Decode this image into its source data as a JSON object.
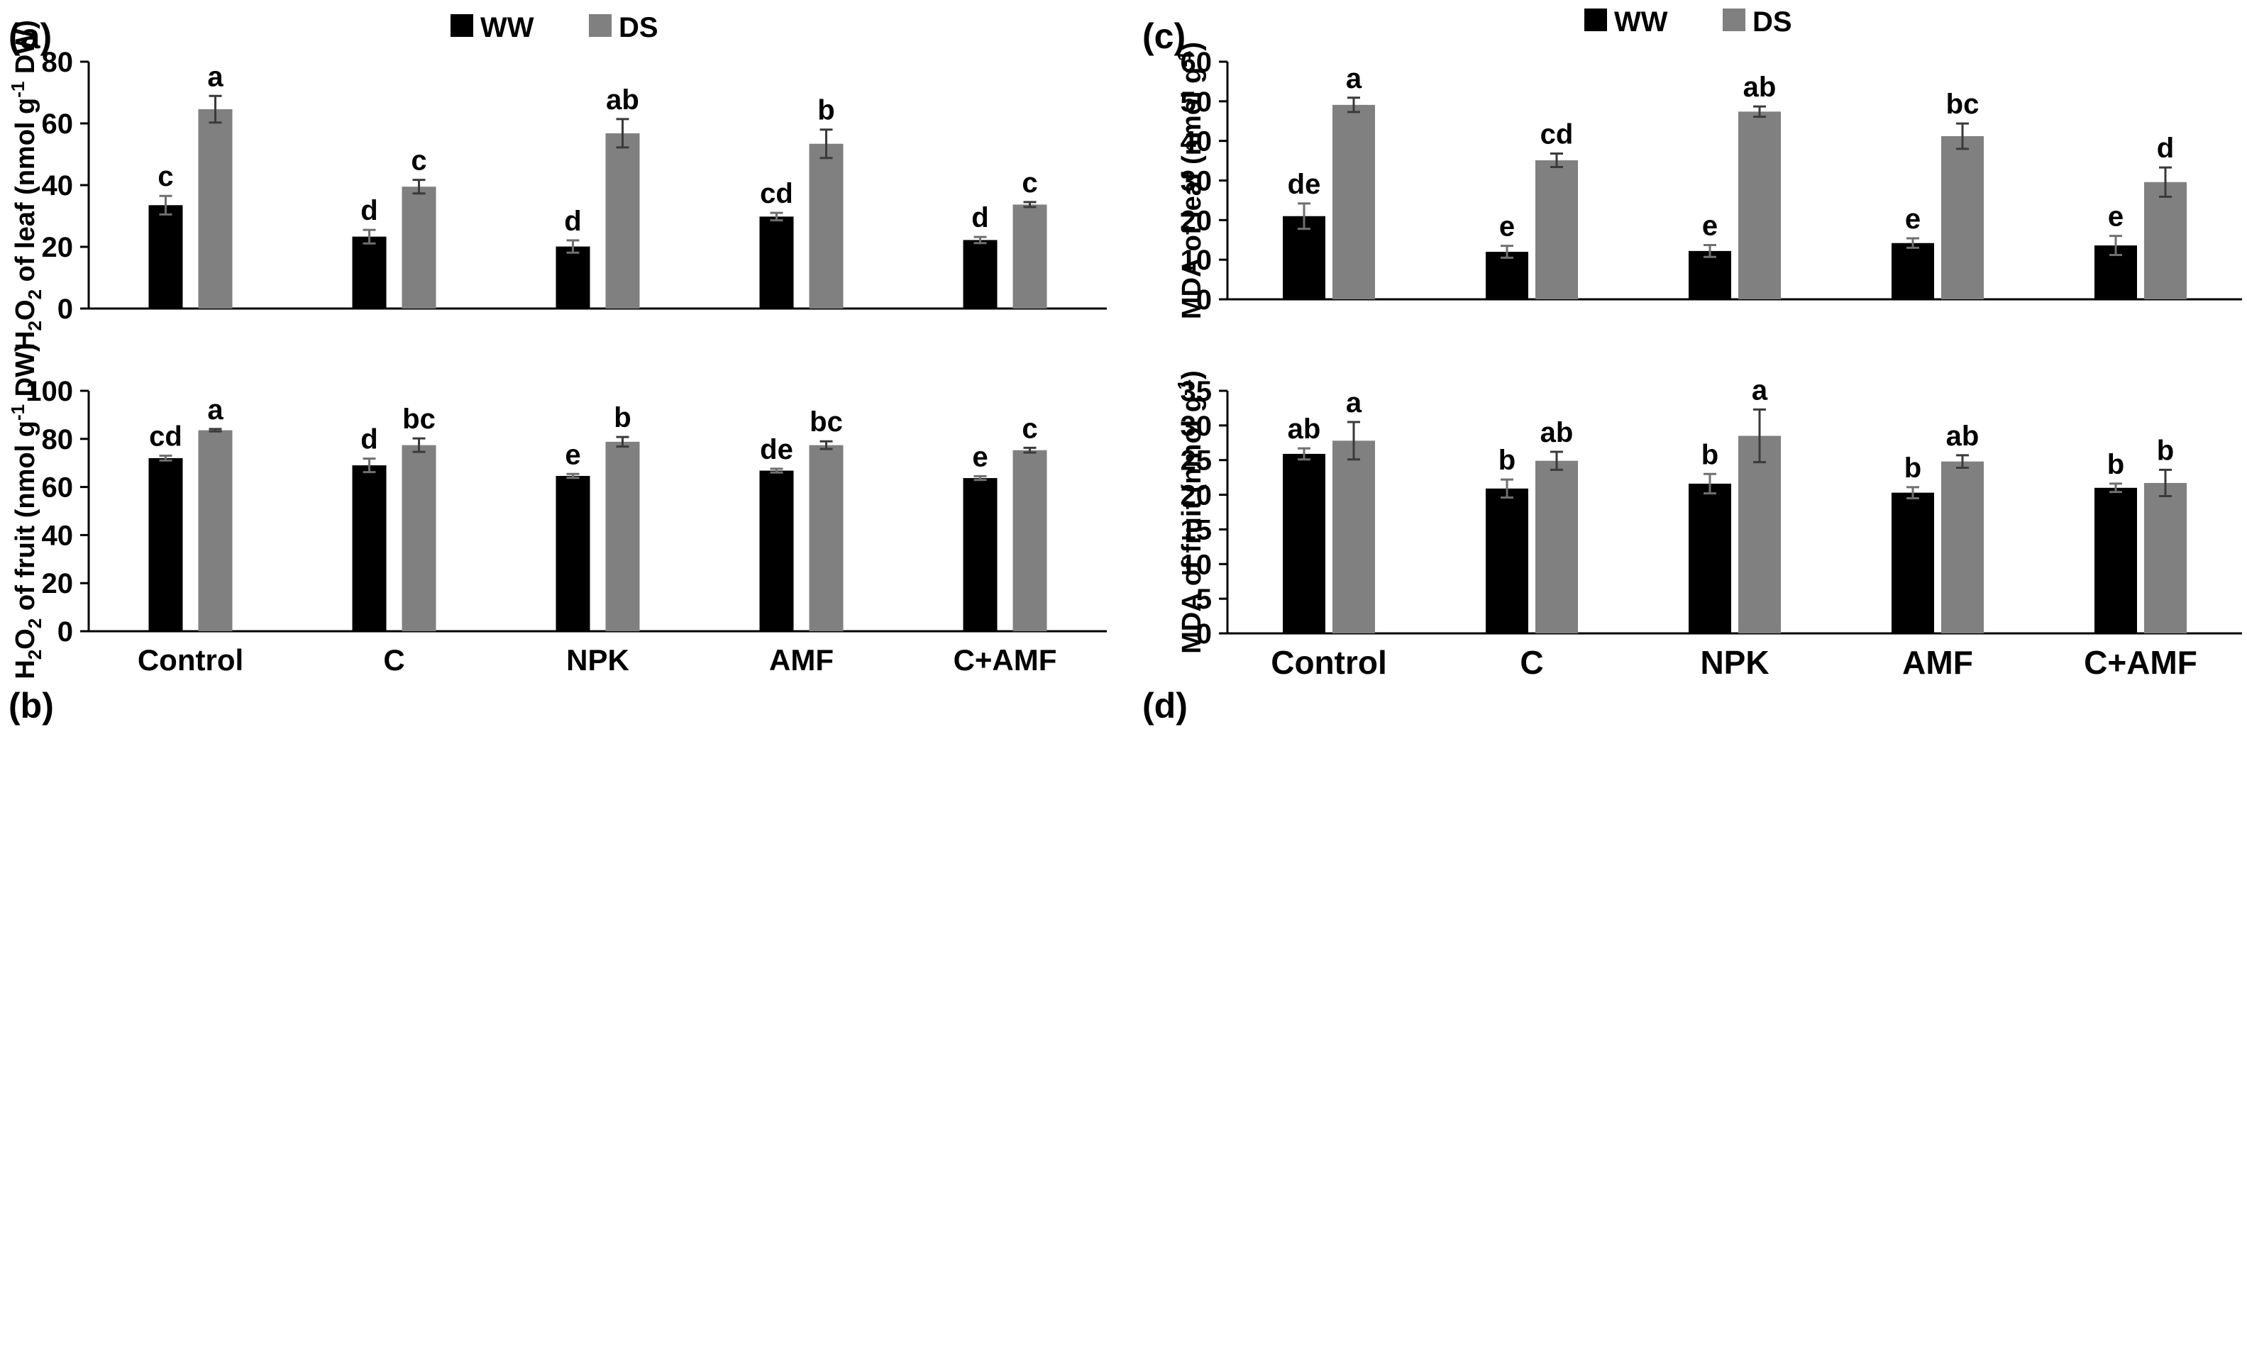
{
  "figure": {
    "colors": {
      "ww": "#000000",
      "ds": "#808080",
      "axis": "#000000",
      "text": "#000000"
    },
    "legend": {
      "ww": "WW",
      "ds": "DS"
    }
  },
  "chart_data": [
    {
      "panel": "(a)",
      "type": "bar",
      "title": "",
      "categories": [
        "Control",
        "C",
        "NPK",
        "AMF",
        "C+AMF"
      ],
      "show_category_labels": false,
      "ylabel": {
        "pre": "H",
        "sub1": "2",
        "mid": "O",
        "sub2": "2",
        "post": " of leaf (nmol g",
        "sup": "-1",
        "end": " DW)"
      },
      "ylim": [
        0,
        80
      ],
      "yticks": [
        0,
        20,
        40,
        60,
        80
      ],
      "grid": false,
      "legend": "top-center",
      "series": [
        {
          "name": "WW",
          "values": [
            33.5,
            23.3,
            20.1,
            29.8,
            22.2
          ],
          "errors": [
            3.0,
            2.2,
            2.0,
            1.2,
            1.0
          ],
          "letters": [
            "c",
            "d",
            "d",
            "cd",
            "d"
          ]
        },
        {
          "name": "DS",
          "values": [
            64.6,
            39.5,
            56.8,
            53.4,
            33.7
          ],
          "errors": [
            4.3,
            2.2,
            4.6,
            4.6,
            0.8
          ],
          "letters": [
            "a",
            "c",
            "ab",
            "b",
            "c"
          ]
        }
      ]
    },
    {
      "panel": "(b)",
      "type": "bar",
      "title": "",
      "categories": [
        "Control",
        "C",
        "NPK",
        "AMF",
        "C+AMF"
      ],
      "show_category_labels": true,
      "ylabel": {
        "pre": "H",
        "sub1": "2",
        "mid": "O",
        "sub2": "2",
        "post": " of fruit (nmol g",
        "sup": "-1",
        "end": " DW)"
      },
      "ylim": [
        0,
        100
      ],
      "yticks": [
        0,
        20,
        40,
        60,
        80,
        100
      ],
      "grid": false,
      "series": [
        {
          "name": "WW",
          "values": [
            72.0,
            69.0,
            64.6,
            66.8,
            63.7
          ],
          "errors": [
            1.0,
            2.8,
            0.8,
            0.8,
            0.8
          ],
          "letters": [
            "cd",
            "d",
            "e",
            "de",
            "e"
          ]
        },
        {
          "name": "DS",
          "values": [
            83.6,
            77.4,
            78.8,
            77.4,
            75.3
          ],
          "errors": [
            0.5,
            2.8,
            2.0,
            1.6,
            1.0
          ],
          "letters": [
            "a",
            "bc",
            "b",
            "bc",
            "c"
          ]
        }
      ]
    },
    {
      "panel": "(c)",
      "type": "bar",
      "title": "",
      "categories": [
        "Control",
        "C",
        "NPK",
        "AMF",
        "C+AMF"
      ],
      "show_category_labels": false,
      "ylabel": {
        "pre": "MDA of leaf (nmol g",
        "sup": "-1",
        "end": ")"
      },
      "ylim": [
        0,
        60
      ],
      "yticks": [
        0,
        10,
        20,
        30,
        40,
        50,
        60
      ],
      "grid": false,
      "legend": "top-center",
      "series": [
        {
          "name": "WW",
          "values": [
            21.0,
            12.0,
            12.2,
            14.2,
            13.6
          ],
          "errors": [
            3.2,
            1.5,
            1.5,
            1.2,
            2.4
          ],
          "letters": [
            "de",
            "e",
            "e",
            "e",
            "e"
          ]
        },
        {
          "name": "DS",
          "values": [
            49.1,
            35.1,
            47.4,
            41.2,
            29.6
          ],
          "errors": [
            1.8,
            1.7,
            1.3,
            3.2,
            3.7
          ],
          "letters": [
            "a",
            "cd",
            "ab",
            "bc",
            "d"
          ]
        }
      ]
    },
    {
      "panel": "(d)",
      "type": "bar",
      "title": "",
      "categories": [
        "Control",
        "C",
        "NPK",
        "AMF",
        "C+AMF"
      ],
      "show_category_labels": true,
      "ylabel": {
        "pre": "MDA of fruit (nmol g",
        "sup": "-1",
        "end": ")"
      },
      "ylim": [
        0,
        35
      ],
      "yticks": [
        0,
        5,
        10,
        15,
        20,
        25,
        30,
        35
      ],
      "grid": false,
      "series": [
        {
          "name": "WW",
          "values": [
            25.9,
            20.9,
            21.6,
            20.3,
            21.0
          ],
          "errors": [
            0.8,
            1.3,
            1.4,
            0.8,
            0.6
          ],
          "letters": [
            "ab",
            "b",
            "b",
            "b",
            "b"
          ]
        },
        {
          "name": "DS",
          "values": [
            27.8,
            24.9,
            28.5,
            24.8,
            21.7
          ],
          "errors": [
            2.7,
            1.3,
            3.8,
            0.9,
            1.9
          ],
          "letters": [
            "a",
            "ab",
            "a",
            "ab",
            "b"
          ]
        }
      ]
    }
  ]
}
